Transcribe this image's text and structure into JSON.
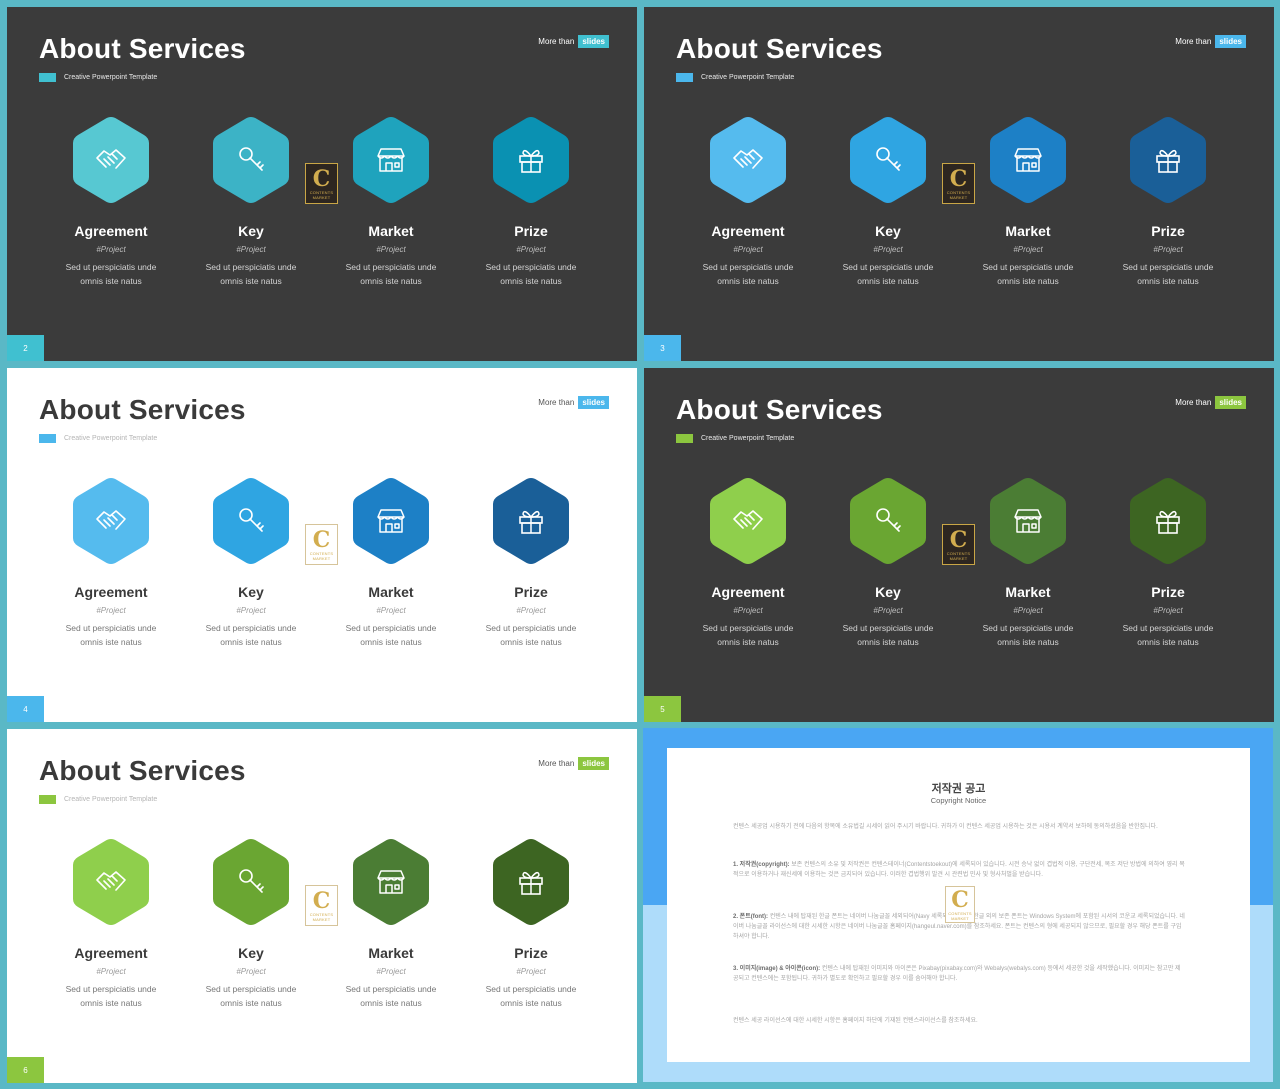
{
  "colors": {
    "frame": "#5ab8c6",
    "dark_bg": "#3b3b3b",
    "light_bg": "#ffffff",
    "badge_blue": "#3aa8e0",
    "badge_green": "#8cc63f"
  },
  "slides": [
    {
      "title": "About Services",
      "subtitle": "Creative Powerpoint Template",
      "more_text": "More than",
      "badge": "slides",
      "number": "2",
      "theme": "dark",
      "accent": "#40c0d0",
      "items": [
        {
          "title": "Agreement",
          "tag": "#Project",
          "desc1": "Sed ut perspiciatis unde",
          "desc2": "omnis iste natus",
          "icon": "handshake-icon",
          "color": "#57c8d2"
        },
        {
          "title": "Key",
          "tag": "#Project",
          "desc1": "Sed ut perspiciatis unde",
          "desc2": "omnis iste natus",
          "icon": "key-icon",
          "color": "#3cb3c6"
        },
        {
          "title": "Market",
          "tag": "#Project",
          "desc1": "Sed ut perspiciatis unde",
          "desc2": "omnis iste natus",
          "icon": "storefront-icon",
          "color": "#1fa3bd"
        },
        {
          "title": "Prize",
          "tag": "#Project",
          "desc1": "Sed ut perspiciatis unde",
          "desc2": "omnis iste natus",
          "icon": "gift-icon",
          "color": "#0a91b2"
        }
      ]
    },
    {
      "title": "About Services",
      "subtitle": "Creative Powerpoint Template",
      "more_text": "More than",
      "badge": "slides",
      "number": "3",
      "theme": "dark",
      "accent": "#4bb7ec",
      "items": [
        {
          "title": "Agreement",
          "tag": "#Project",
          "desc1": "Sed ut perspiciatis unde",
          "desc2": "omnis iste natus",
          "icon": "handshake-icon",
          "color": "#55bbee"
        },
        {
          "title": "Key",
          "tag": "#Project",
          "desc1": "Sed ut perspiciatis unde",
          "desc2": "omnis iste natus",
          "icon": "key-icon",
          "color": "#2fa5e2"
        },
        {
          "title": "Market",
          "tag": "#Project",
          "desc1": "Sed ut perspiciatis unde",
          "desc2": "omnis iste natus",
          "icon": "storefront-icon",
          "color": "#1d80c6"
        },
        {
          "title": "Prize",
          "tag": "#Project",
          "desc1": "Sed ut perspiciatis unde",
          "desc2": "omnis iste natus",
          "icon": "gift-icon",
          "color": "#1a5f98"
        }
      ]
    },
    {
      "title": "About Services",
      "subtitle": "Creative Powerpoint Template",
      "more_text": "More than",
      "badge": "slides",
      "number": "4",
      "theme": "light",
      "accent": "#4bb7ec",
      "items": [
        {
          "title": "Agreement",
          "tag": "#Project",
          "desc1": "Sed ut perspiciatis unde",
          "desc2": "omnis iste natus",
          "icon": "handshake-icon",
          "color": "#55bbee"
        },
        {
          "title": "Key",
          "tag": "#Project",
          "desc1": "Sed ut perspiciatis unde",
          "desc2": "omnis iste natus",
          "icon": "key-icon",
          "color": "#2fa5e2"
        },
        {
          "title": "Market",
          "tag": "#Project",
          "desc1": "Sed ut perspiciatis unde",
          "desc2": "omnis iste natus",
          "icon": "storefront-icon",
          "color": "#1d80c6"
        },
        {
          "title": "Prize",
          "tag": "#Project",
          "desc1": "Sed ut perspiciatis unde",
          "desc2": "omnis iste natus",
          "icon": "gift-icon",
          "color": "#1a5f98"
        }
      ]
    },
    {
      "title": "About Services",
      "subtitle": "Creative Powerpoint Template",
      "more_text": "More than",
      "badge": "slides",
      "number": "5",
      "theme": "dark",
      "accent": "#8cc63f",
      "items": [
        {
          "title": "Agreement",
          "tag": "#Project",
          "desc1": "Sed ut perspiciatis unde",
          "desc2": "omnis iste natus",
          "icon": "handshake-icon",
          "color": "#8fcf4c"
        },
        {
          "title": "Key",
          "tag": "#Project",
          "desc1": "Sed ut perspiciatis unde",
          "desc2": "omnis iste natus",
          "icon": "key-icon",
          "color": "#6aa632"
        },
        {
          "title": "Market",
          "tag": "#Project",
          "desc1": "Sed ut perspiciatis unde",
          "desc2": "omnis iste natus",
          "icon": "storefront-icon",
          "color": "#4b7d34"
        },
        {
          "title": "Prize",
          "tag": "#Project",
          "desc1": "Sed ut perspiciatis unde",
          "desc2": "omnis iste natus",
          "icon": "gift-icon",
          "color": "#3d6522"
        }
      ]
    },
    {
      "title": "About Services",
      "subtitle": "Creative Powerpoint Template",
      "more_text": "More than",
      "badge": "slides",
      "number": "6",
      "theme": "light",
      "accent": "#8cc63f",
      "items": [
        {
          "title": "Agreement",
          "tag": "#Project",
          "desc1": "Sed ut perspiciatis unde",
          "desc2": "omnis iste natus",
          "icon": "handshake-icon",
          "color": "#8fcf4c"
        },
        {
          "title": "Key",
          "tag": "#Project",
          "desc1": "Sed ut perspiciatis unde",
          "desc2": "omnis iste natus",
          "icon": "key-icon",
          "color": "#6aa632"
        },
        {
          "title": "Market",
          "tag": "#Project",
          "desc1": "Sed ut perspiciatis unde",
          "desc2": "omnis iste natus",
          "icon": "storefront-icon",
          "color": "#4b7d34"
        },
        {
          "title": "Prize",
          "tag": "#Project",
          "desc1": "Sed ut perspiciatis unde",
          "desc2": "omnis iste natus",
          "icon": "gift-icon",
          "color": "#3d6522"
        }
      ]
    }
  ],
  "logo": {
    "letter": "C",
    "text1": "CONTENTS",
    "text2": "MARKET"
  },
  "copyright": {
    "title": "저작권 공고",
    "subtitle": "Copyright Notice",
    "p1": "컨텐스 세공업 시용하기 전에 다음의 항목에 소유법길 시세이 읽어 주시기 바랍니다. 귀하가 이 컨텐스 세공업 시용하는 것은 시용서 계약서 보하에 동의하셨음을 반한집니다.",
    "p2_head": "1. 저작권(copyright):",
    "p2": "보존 컨텐스의 소유 및 저작권은 컨텐스테이너(Contentstoekout)에 세록되어 있습니다. 시전 승낙 없이 겹법적 이용, 구단전세, 복조 저단 방법에 의하여 영리 목적으로 이용하거나 재신세에 이용하는 것은 금지되어 있습니다. 이러한 겹법행위 발견 시 관련법 민사 및 형사처벌을 받습니다.",
    "p3_head": "2. 폰트(font):",
    "p3": "컨텐스 내에 탑재된 한글 폰트는 네이버 나눔글꼴 세외되어(Navy 세록되었습니다. 한글 외의 보존 폰트는 Windows System에 포함된 시서의 코운교 세록되었습니다. 네이버 나눔글꼴 라이선스에 대한 시세한 시항은 네이버 나눔글꼴 홈페이지(hangeul.naver.com)를 참조하세요. 폰트는 컨텐스의 형에 세공되지 않으므로, 필요할 경우 해당 폰트를 구입하셔야 합니다.",
    "p4_head": "3. 이미지(image) & 아이콘(icon):",
    "p4": "컨텐스 내에 탑재된 이미지와 아이콘은 Pixabay(pixabay.com)와 Webalys(webalys.com) 등에서 세공한 것을 세작했습니다. 이미지는 참고만 제공되고 컨텐스에는 포함됩니다. 귀하가 별도로 확인하고 필요할 경우 이를 숨어해야 합니다.",
    "p5": "컨텐스 세공 라이선스에 대한 시세한 시항은 홈페이지 하단에 기재된 컨텐스라이선스를 참조하세요."
  }
}
